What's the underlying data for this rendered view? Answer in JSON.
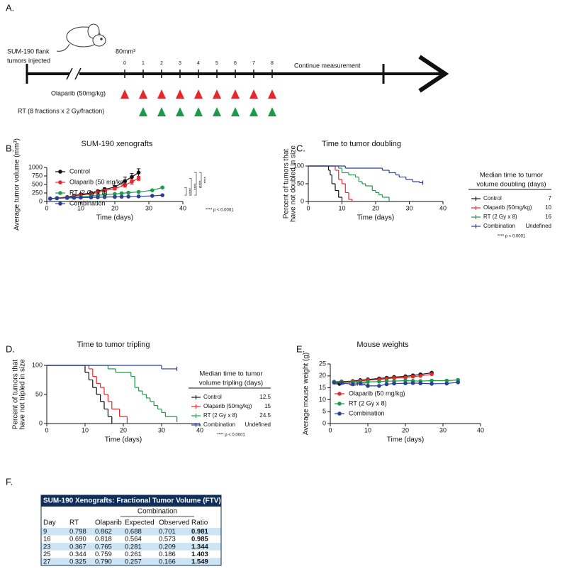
{
  "panel_labels": [
    "A.",
    "B.",
    "C.",
    "D.",
    "E.",
    "F."
  ],
  "timeline": {
    "left_label": [
      "SUM-190 flank",
      "tumors injected"
    ],
    "volume": "80mm³",
    "days": [
      0,
      1,
      2,
      3,
      4,
      5,
      6,
      7,
      8
    ],
    "continue": "Continue measurement",
    "olaparib": "Olaparib (50mg/kg)",
    "rt": "RT (8 fractions x 2 Gy/fraction)"
  },
  "chart_data": [
    {
      "type": "line",
      "title": "SUM-190 xenografts",
      "xlabel": "Time (days)",
      "ylabel": "Average tumor volume (mm³)",
      "xlim": [
        0,
        40
      ],
      "xticks": [
        0,
        10,
        20,
        30,
        40
      ],
      "ylim": [
        0,
        1000
      ],
      "yticks": [
        0,
        250,
        500,
        750,
        1000
      ],
      "legend": "upper left",
      "series": [
        {
          "name": "Control",
          "color": "#111111",
          "x": [
            1,
            3,
            6,
            8,
            10,
            13,
            15,
            17,
            20,
            23,
            25,
            27
          ],
          "values": [
            85,
            100,
            130,
            170,
            210,
            250,
            300,
            360,
            420,
            600,
            720,
            850
          ],
          "errors": [
            5,
            10,
            15,
            20,
            25,
            30,
            35,
            40,
            50,
            120,
            100,
            110
          ]
        },
        {
          "name": "Olaparib (50 mg/kg)",
          "color": "#e8262b",
          "x": [
            1,
            3,
            6,
            8,
            10,
            13,
            15,
            17,
            20,
            23,
            25,
            27
          ],
          "values": [
            85,
            95,
            120,
            150,
            190,
            220,
            270,
            320,
            380,
            480,
            580,
            680
          ],
          "errors": [
            5,
            8,
            12,
            15,
            20,
            25,
            30,
            35,
            40,
            60,
            70,
            60
          ]
        },
        {
          "name": "RT (2 Gy x 8)",
          "color": "#1c9a48",
          "x": [
            1,
            3,
            6,
            8,
            10,
            13,
            15,
            17,
            20,
            22,
            24,
            27,
            31,
            34
          ],
          "values": [
            85,
            95,
            110,
            120,
            140,
            160,
            180,
            200,
            220,
            240,
            260,
            280,
            330,
            410
          ],
          "errors": [
            5,
            5,
            5,
            8,
            8,
            10,
            10,
            10,
            12,
            12,
            15,
            15,
            20,
            25
          ]
        },
        {
          "name": "Combination",
          "color": "#2a3e9c",
          "x": [
            1,
            3,
            6,
            8,
            10,
            13,
            15,
            17,
            20,
            22,
            24,
            27,
            31,
            34
          ],
          "values": [
            85,
            95,
            105,
            110,
            115,
            120,
            125,
            130,
            135,
            140,
            145,
            150,
            165,
            185
          ],
          "errors": [
            3,
            3,
            3,
            4,
            4,
            4,
            5,
            5,
            5,
            5,
            6,
            6,
            7,
            8
          ]
        }
      ],
      "annotations": [
        "****",
        "****",
        "****",
        "****",
        "**** p < 0.0001"
      ]
    },
    {
      "type": "step",
      "title": "Time to tumor doubling",
      "xlabel": "Time (days)",
      "ylabel": [
        "Percent of tumors that",
        "have not doubled in size"
      ],
      "xlim": [
        0,
        40
      ],
      "xticks": [
        0,
        10,
        20,
        30,
        40
      ],
      "ylim": [
        0,
        100
      ],
      "yticks": [
        0,
        50,
        100
      ],
      "legend_title": [
        "Median time to tumor",
        "volume doubling (days)"
      ],
      "series": [
        {
          "name": "Control",
          "color": "#111111",
          "median": 7,
          "x": [
            0,
            6,
            6.5,
            7,
            8,
            9,
            10
          ],
          "values": [
            100,
            88,
            75,
            50,
            31,
            12,
            0
          ]
        },
        {
          "name": "Olaparib (50mg/kg)",
          "color": "#e8262b",
          "median": 10,
          "x": [
            0,
            8,
            9,
            10,
            11,
            12,
            13
          ],
          "values": [
            100,
            88,
            62,
            50,
            25,
            6,
            0
          ]
        },
        {
          "name": "RT (2 Gy x 8)",
          "color": "#1c9a48",
          "median": 16,
          "x": [
            0,
            9,
            10,
            12,
            14,
            15,
            16,
            17,
            19,
            20,
            21,
            22,
            24
          ],
          "values": [
            100,
            94,
            81,
            75,
            69,
            56,
            50,
            44,
            31,
            25,
            19,
            12,
            0
          ]
        },
        {
          "name": "Combination",
          "color": "#2a3e9c",
          "median": "Undefined",
          "x": [
            0,
            11,
            22,
            24,
            26,
            27,
            29,
            31,
            33,
            34
          ],
          "values": [
            100,
            94,
            88,
            81,
            75,
            69,
            62,
            56,
            53,
            53
          ]
        }
      ],
      "annotations": [
        "**** p < 0.0001"
      ]
    },
    {
      "type": "step",
      "title": "Time to tumor tripling",
      "xlabel": "Time (days)",
      "ylabel": [
        "Percent of tumors that",
        "have not tripled in size"
      ],
      "xlim": [
        0,
        40
      ],
      "xticks": [
        0,
        10,
        20,
        30,
        40
      ],
      "ylim": [
        0,
        100
      ],
      "yticks": [
        0,
        50,
        100
      ],
      "legend_title": [
        "Median time to tumor",
        "volume tripling (days)"
      ],
      "series": [
        {
          "name": "Control",
          "color": "#111111",
          "median": 12.5,
          "x": [
            0,
            10,
            11,
            12,
            13,
            14,
            15,
            16,
            17
          ],
          "values": [
            100,
            88,
            75,
            62,
            50,
            38,
            25,
            12,
            0
          ]
        },
        {
          "name": "Olaparib (50mg/kg)",
          "color": "#e8262b",
          "median": 15,
          "x": [
            0,
            11,
            12,
            13,
            14,
            15,
            16,
            17,
            19,
            21
          ],
          "values": [
            100,
            94,
            81,
            69,
            62,
            50,
            38,
            25,
            12,
            0
          ]
        },
        {
          "name": "RT (2 Gy x 8)",
          "color": "#1c9a48",
          "median": 24.5,
          "x": [
            0,
            16,
            18,
            22,
            23,
            24,
            25,
            26,
            27,
            28,
            29,
            30,
            31,
            34
          ],
          "values": [
            100,
            94,
            88,
            81,
            62,
            56,
            50,
            44,
            38,
            31,
            25,
            19,
            12,
            6
          ]
        },
        {
          "name": "Combination",
          "color": "#2a3e9c",
          "median": "Undefined",
          "x": [
            0,
            30,
            34
          ],
          "values": [
            100,
            94,
            94
          ]
        }
      ],
      "annotations": [
        "**** p < 0.0001"
      ]
    },
    {
      "type": "line",
      "title": "Mouse weights",
      "xlabel": "Time (days)",
      "ylabel": "Average mouse weight (g)",
      "xlim": [
        0,
        40
      ],
      "xticks": [
        0,
        10,
        20,
        30,
        40
      ],
      "ylim": [
        0,
        25
      ],
      "yticks": [
        0,
        5,
        10,
        15,
        20,
        25
      ],
      "legend": "lower left",
      "series": [
        {
          "name": "Control",
          "color": "#111111",
          "x": [
            1,
            3,
            6,
            8,
            10,
            13,
            15,
            17,
            20,
            22,
            24,
            27
          ],
          "values": [
            17.5,
            17.6,
            17.8,
            18.2,
            18.5,
            18.9,
            19.2,
            19.5,
            19.8,
            20.2,
            20.6,
            21.3
          ]
        },
        {
          "name": "Olaparib (50 mg/kg)",
          "color": "#e8262b",
          "x": [
            1,
            3,
            6,
            8,
            10,
            13,
            15,
            17,
            20,
            22,
            24,
            27
          ],
          "values": [
            17.3,
            17.4,
            17.6,
            17.9,
            18.2,
            18.5,
            18.8,
            19.1,
            19.3,
            19.7,
            20,
            20.7
          ]
        },
        {
          "name": "RT (2 Gy x 8)",
          "color": "#1c9a48",
          "x": [
            1,
            3,
            6,
            8,
            10,
            13,
            15,
            17,
            20,
            22,
            24,
            27,
            31,
            34
          ],
          "values": [
            17.4,
            17.3,
            17.2,
            17.4,
            17.5,
            17.6,
            17.8,
            17.8,
            18,
            17.9,
            17.8,
            18,
            18,
            18.3
          ]
        },
        {
          "name": "Combination",
          "color": "#2a3e9c",
          "x": [
            1,
            3,
            6,
            8,
            10,
            13,
            15,
            17,
            20,
            22,
            24,
            27,
            31,
            34
          ],
          "values": [
            17.2,
            17,
            16.5,
            16.8,
            15.8,
            15.8,
            16.5,
            16.8,
            16.9,
            17,
            16.9,
            16.7,
            16.8,
            17.3
          ]
        }
      ]
    }
  ],
  "table": {
    "title": "SUM-190 Xenografts: Fractional Tumor Volume (FTV)",
    "group_header": "Combination",
    "columns": [
      "Day",
      "RT",
      "Olaparib",
      "Expected",
      "Observed",
      "Ratio"
    ],
    "rows": [
      [
        "9",
        "0.798",
        "0.862",
        "0.688",
        "0.701",
        "0.981"
      ],
      [
        "16",
        "0.690",
        "0.818",
        "0.564",
        "0.573",
        "0.985"
      ],
      [
        "23",
        "0.367",
        "0.765",
        "0.281",
        "0.209",
        "1.344"
      ],
      [
        "25",
        "0.344",
        "0.759",
        "0.261",
        "0.186",
        "1.403"
      ],
      [
        "27",
        "0.325",
        "0.790",
        "0.257",
        "0.166",
        "1.549"
      ]
    ]
  }
}
